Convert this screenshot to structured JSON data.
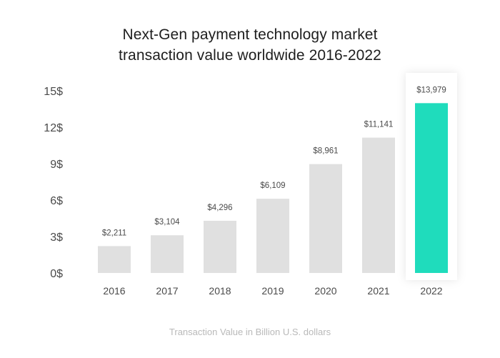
{
  "chart_data": {
    "type": "bar",
    "title_lines": [
      "Next-Gen payment technology market",
      "transaction value worldwide 2016-2022"
    ],
    "xlabel": "Transaction Value in Billion U.S. dollars",
    "ylabel": "",
    "categories": [
      "2016",
      "2017",
      "2018",
      "2019",
      "2020",
      "2021",
      "2022"
    ],
    "values": [
      2211,
      3104,
      4296,
      6109,
      8961,
      11141,
      13979
    ],
    "data_labels": [
      "$2,211",
      "$3,104",
      "$4,296",
      "$6,109",
      "$8,961",
      "$11,141",
      "$13,979"
    ],
    "yticks": [
      0,
      3000,
      6000,
      9000,
      12000,
      15000
    ],
    "ytick_labels": [
      "0$",
      "3$",
      "6$",
      "9$",
      "12$",
      "15$"
    ],
    "ylim": [
      0,
      15000
    ],
    "grid": false,
    "legend": "none",
    "colors": {
      "bar": "#e0e0e0",
      "highlight_bar": "#1fdcbc",
      "highlight_index": 6,
      "data_label": "#4a4a4a",
      "tick_label": "#4a4a4a"
    }
  }
}
